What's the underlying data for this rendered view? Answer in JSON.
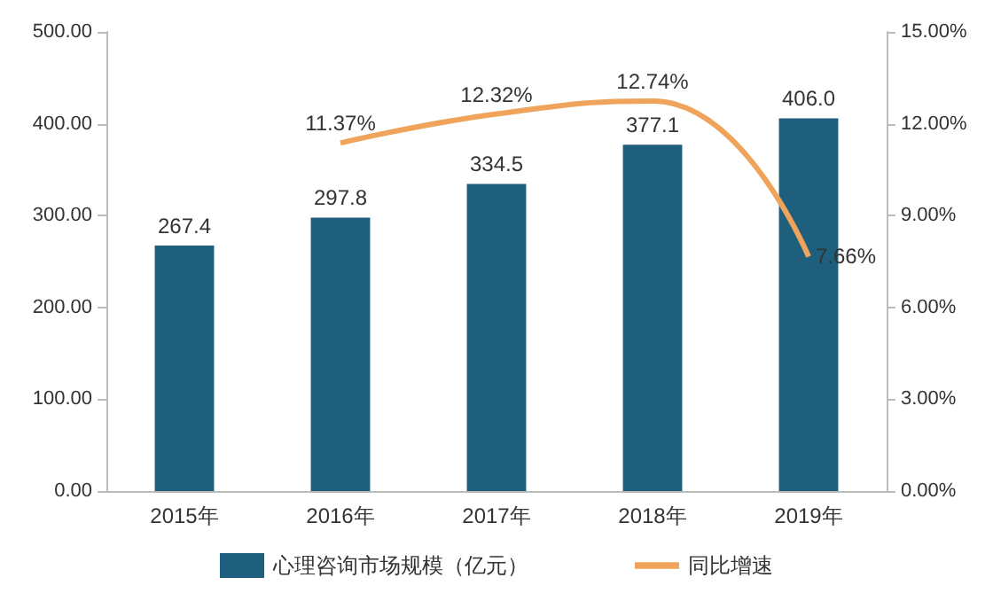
{
  "chart_data": {
    "type": "bar",
    "categories": [
      "2015年",
      "2016年",
      "2017年",
      "2018年",
      "2019年"
    ],
    "series": [
      {
        "name": "心理咨询市场规模（亿元）",
        "color": "#1f5f7e",
        "values": [
          267.4,
          297.8,
          334.5,
          377.1,
          406.0
        ],
        "value_labels": [
          "267.4",
          "297.8",
          "334.5",
          "377.1",
          "406.0"
        ]
      },
      {
        "name": "同比增速",
        "type": "line",
        "axis": "y2",
        "color": "#f0a35a",
        "values": [
          null,
          11.37,
          12.32,
          12.74,
          7.66
        ],
        "value_labels": [
          null,
          "11.37%",
          "12.32%",
          "12.74%",
          "7.66%"
        ]
      }
    ],
    "ylim": [
      0,
      500
    ],
    "yticks": [
      {
        "value": 0,
        "label": "0.00"
      },
      {
        "value": 100,
        "label": "100.00"
      },
      {
        "value": 200,
        "label": "200.00"
      },
      {
        "value": 300,
        "label": "300.00"
      },
      {
        "value": 400,
        "label": "400.00"
      },
      {
        "value": 500,
        "label": "500.00"
      }
    ],
    "y2lim": [
      0,
      15
    ],
    "y2ticks": [
      {
        "value": 0,
        "label": "0.00%"
      },
      {
        "value": 3,
        "label": "3.00%"
      },
      {
        "value": 6,
        "label": "6.00%"
      },
      {
        "value": 9,
        "label": "9.00%"
      },
      {
        "value": 12,
        "label": "12.00%"
      },
      {
        "value": 15,
        "label": "15.00%"
      }
    ],
    "legend": "bottom",
    "grid": false,
    "marker": "none"
  }
}
